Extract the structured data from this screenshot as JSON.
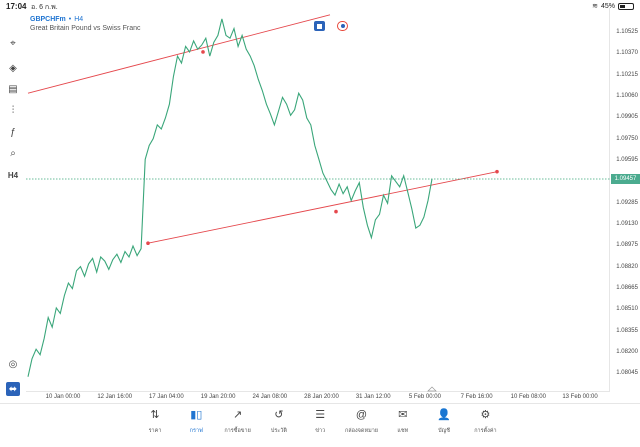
{
  "status_bar": {
    "time": "17:04",
    "date": "อ. 6 ก.พ.",
    "battery": "45%"
  },
  "chart_header": {
    "symbol": "GBPCHFm",
    "separator": "•",
    "timeframe": "H4",
    "description": "Great Britain Pound vs Swiss Franc"
  },
  "left_toolbar": [
    {
      "icon": "crosshair-icon"
    },
    {
      "icon": "indicator-icon"
    },
    {
      "icon": "chart-type-icon"
    },
    {
      "icon": "settings-sliders-icon"
    },
    {
      "icon": "function-icon"
    },
    {
      "icon": "objects-icon"
    },
    {
      "icon": "timeframe-icon",
      "label": "H4"
    }
  ],
  "price_axis": [
    "1.10525",
    "1.10370",
    "1.10215",
    "1.10060",
    "1.09905",
    "1.09750",
    "1.09595",
    "1.09285",
    "1.09130",
    "1.08975",
    "1.08820",
    "1.08665",
    "1.08510",
    "1.08355",
    "1.08200",
    "1.08045"
  ],
  "current_price": "1.09457",
  "time_axis": [
    "10 Jan 00:00",
    "12 Jan 16:00",
    "17 Jan 04:00",
    "19 Jan 20:00",
    "24 Jan 08:00",
    "28 Jan 20:00",
    "31 Jan 12:00",
    "5 Feb 00:00",
    "7 Feb 16:00",
    "10 Feb 08:00",
    "13 Feb 00:00"
  ],
  "chart_data": {
    "type": "line",
    "colors": {
      "line": "#3aa67a",
      "trendline": "#e5484d",
      "price_line": "#3aa67a"
    },
    "grid": false,
    "price_values": [
      1.0802,
      1.0815,
      1.0822,
      1.0818,
      1.083,
      1.0845,
      1.0838,
      1.0852,
      1.0848,
      1.0861,
      1.087,
      1.0866,
      1.0879,
      1.0882,
      1.0875,
      1.0884,
      1.0888,
      1.0878,
      1.0889,
      1.0886,
      1.088,
      1.0887,
      1.0891,
      1.0885,
      1.0893,
      1.0889,
      1.0897,
      1.089,
      1.0895,
      1.096,
      1.097,
      1.0975,
      1.0985,
      1.0982,
      1.099,
      1.1,
      1.102,
      1.1035,
      1.103,
      1.1042,
      1.1038,
      1.1046,
      1.104,
      1.1043,
      1.1048,
      1.1035,
      1.1045,
      1.105,
      1.1062,
      1.105,
      1.1048,
      1.1055,
      1.1042,
      1.105,
      1.104,
      1.1035,
      1.1028,
      1.1018,
      1.101,
      1.1,
      1.0993,
      1.0985,
      1.0995,
      1.1005,
      1.1,
      1.0992,
      1.0996,
      1.1008,
      1.1003,
      1.099,
      1.0985,
      1.097,
      1.096,
      1.095,
      1.0944,
      1.0938,
      1.0934,
      1.0942,
      1.0935,
      1.094,
      1.093,
      1.0937,
      1.0943,
      1.0925,
      1.0912,
      1.0903,
      1.0916,
      1.092,
      1.0934,
      1.0928,
      1.0948,
      1.0944,
      1.094,
      1.0948,
      1.0936,
      1.0924,
      1.091,
      1.0912,
      1.0918,
      1.093,
      1.09457
    ],
    "trendlines": [
      {
        "start_price": 1.1008,
        "end_price": 1.1065,
        "anchor_price": 1.1038
      },
      {
        "start_price": 1.0899,
        "end_price": 1.0951,
        "anchor_price": 1.0922
      }
    ]
  },
  "bottom_nav": [
    {
      "icon": "quotes-icon",
      "glyph": "⇅",
      "label": "ราคา",
      "active": false
    },
    {
      "icon": "chart-icon",
      "glyph": "▮▯",
      "label": "กราฟ",
      "active": true
    },
    {
      "icon": "trade-icon",
      "glyph": "↗",
      "label": "การซื้อขาย",
      "active": false
    },
    {
      "icon": "history-icon",
      "glyph": "↺",
      "label": "ประวัติ",
      "active": false
    },
    {
      "icon": "news-icon",
      "glyph": "☰",
      "label": "ข่าว",
      "active": false
    },
    {
      "icon": "mailbox-icon",
      "glyph": "@",
      "label": "กล่องจดหมาย",
      "active": false
    },
    {
      "icon": "chat-icon",
      "glyph": "✉",
      "label": "แชท",
      "active": false
    },
    {
      "icon": "accounts-icon",
      "glyph": "👤",
      "label": "บัญชี",
      "active": false
    },
    {
      "icon": "settings-icon",
      "glyph": "⚙",
      "label": "การตั้งค่า",
      "active": false
    }
  ]
}
